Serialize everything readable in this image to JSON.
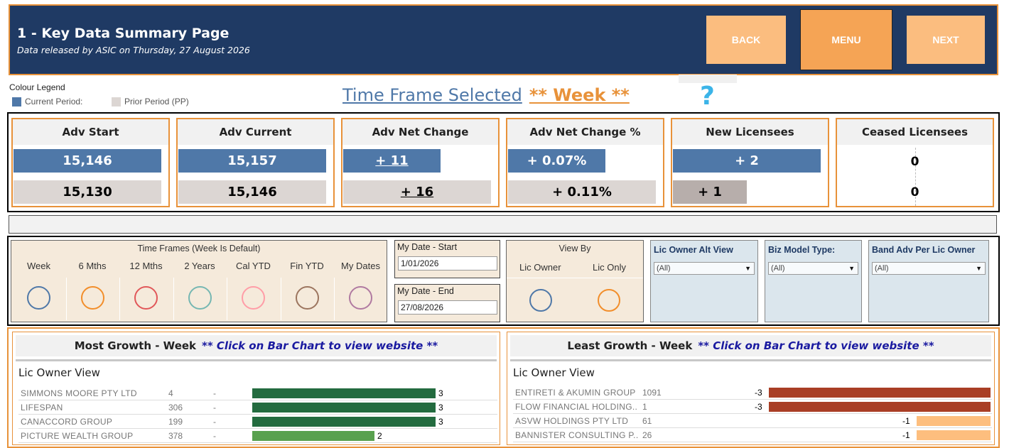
{
  "header": {
    "title": "1 - Key Data Summary Page",
    "subtitle": "Data released by ASIC on Thursday, 27 August 2026",
    "buttons": {
      "back": "BACK",
      "menu": "MENU",
      "next": "NEXT"
    }
  },
  "legend": {
    "title": "Colour Legend",
    "current": "Current Period:",
    "prior": "Prior Period (PP)",
    "colors": {
      "current": "#4f78a8",
      "prior": "#dcd6d3"
    }
  },
  "time_frame_selected": {
    "label": "Time Frame Selected",
    "value": "** Week **"
  },
  "help": {
    "icon": "?"
  },
  "kpis": [
    {
      "title": "Adv Start",
      "current": "15,146",
      "prior": "15,130",
      "current_fill": 1.0,
      "prior_fill": 1.0
    },
    {
      "title": "Adv Current",
      "current": "15,157",
      "prior": "15,146",
      "current_fill": 1.0,
      "prior_fill": 1.0
    },
    {
      "title": "Adv Net Change",
      "current": "+ 11",
      "prior": "+ 16",
      "current_fill": 0.66,
      "prior_fill": 1.0
    },
    {
      "title": "Adv Net Change %",
      "current": "+ 0.07%",
      "prior": "+ 0.11%",
      "current_fill": 0.66,
      "prior_fill": 1.0
    },
    {
      "title": "New Licensees",
      "current": "+ 2",
      "prior": "+ 1",
      "current_fill": 1.0,
      "prior_fill": 0.5
    },
    {
      "title": "Ceased Licensees",
      "current": "0",
      "prior": "0",
      "current_fill": 0,
      "prior_fill": 0
    }
  ],
  "time_frames": {
    "title": "Time Frames (Week Is Default)",
    "options": [
      {
        "label": "Week",
        "color": "#4f78a8"
      },
      {
        "label": "6 Mths",
        "color": "#f28e2b"
      },
      {
        "label": "12 Mths",
        "color": "#e15759"
      },
      {
        "label": "2 Years",
        "color": "#76b7b2"
      },
      {
        "label": "Cal YTD",
        "color": "#ff9da7"
      },
      {
        "label": "Fin YTD",
        "color": "#9c755f"
      },
      {
        "label": "My Dates",
        "color": "#b07aa1"
      }
    ]
  },
  "my_dates": {
    "start_label": "My Date - Start",
    "start_value": "1/01/2026",
    "end_label": "My Date - End",
    "end_value": "27/08/2026"
  },
  "view_by": {
    "title": "View By",
    "options": [
      {
        "label": "Lic Owner",
        "color": "#4f78a8"
      },
      {
        "label": "Lic Only",
        "color": "#f28e2b"
      }
    ]
  },
  "dropdowns": [
    {
      "title": "Lic Owner Alt View",
      "value": "(All)"
    },
    {
      "title": "Biz Model Type:",
      "value": "(All)"
    },
    {
      "title": "Band Adv Per Lic Owner",
      "value": "(All)"
    }
  ],
  "most_growth": {
    "title": "Most Growth - Week",
    "note": "** Click on Bar Chart to view website **",
    "view": "Lic Owner View",
    "rows": [
      {
        "name": "SIMMONS MOORE PTY LTD",
        "count": "4",
        "dash": "-",
        "value": 3,
        "color": "#236b3f"
      },
      {
        "name": "LIFESPAN",
        "count": "306",
        "dash": "-",
        "value": 3,
        "color": "#236b3f"
      },
      {
        "name": "CANACCORD GROUP",
        "count": "199",
        "dash": "-",
        "value": 3,
        "color": "#236b3f"
      },
      {
        "name": "PICTURE WEALTH GROUP",
        "count": "378",
        "dash": "-",
        "value": 2,
        "color": "#59a14f"
      }
    ]
  },
  "least_growth": {
    "title": "Least Growth - Week",
    "note": "** Click on Bar Chart to view website **",
    "view": "Lic Owner View",
    "rows": [
      {
        "name": "ENTIRETI & AKUMIN GROUP",
        "count": "1091",
        "value": -3,
        "color": "#a93e25"
      },
      {
        "name": "FLOW FINANCIAL HOLDING..",
        "count": "1",
        "value": -3,
        "color": "#a93e25"
      },
      {
        "name": "ASVW HOLDINGS PTY LTD",
        "count": "61",
        "value": -1,
        "color": "#fdbe7e"
      },
      {
        "name": "BANNISTER CONSULTING P..",
        "count": "26",
        "value": -1,
        "color": "#fdbe7e"
      }
    ]
  }
}
